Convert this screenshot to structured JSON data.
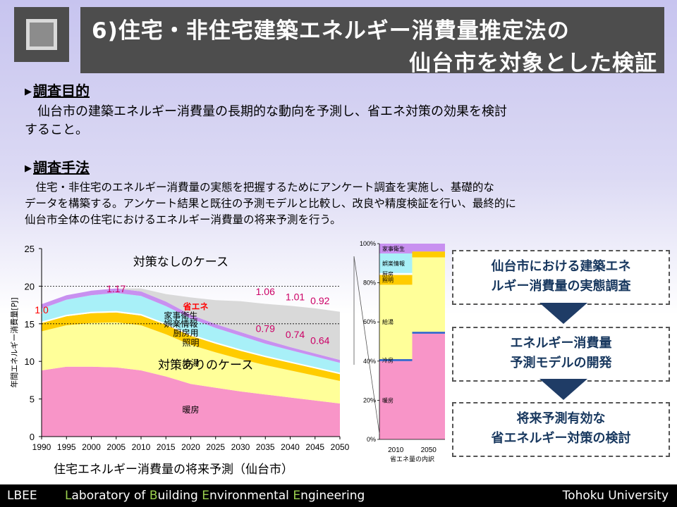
{
  "title": {
    "line1": "6)住宅・非住宅建築エネルギー消費量推定法の",
    "line2": "仙台市を対象とした検証"
  },
  "section1": {
    "heading": "調査目的",
    "lines": [
      "　仙台市の建築エネルギー消費量の長期的な動向を予測し、省エネ対策の効果を検討",
      "すること。"
    ]
  },
  "section2": {
    "heading": "調査手法",
    "lines": [
      "　住宅・非住宅のエネルギー消費量の実態を把握するためにアンケート調査を実施し、基礎的な",
      "データを構築する。アンケート結果と既往の予測モデルと比較し、改良や精度検証を行い、最終的に",
      "仙台市全体の住宅におけるエネルギー消費量の将来予測を行う。"
    ]
  },
  "flow": {
    "box1": [
      "仙台市における建築エネ",
      "ルギー消費量の実態調査"
    ],
    "box2": [
      "エネルギー消費量",
      "予測モデルの開発"
    ],
    "box3": [
      "将来予測有効な",
      "省エネルギー対策の検討"
    ]
  },
  "chart_caption": "住宅エネルギー消費量の将来予測（仙台市）",
  "chart_data": [
    {
      "type": "area",
      "title": "住宅エネルギー消費量の将来予測（仙台市）",
      "xlabel": "",
      "ylabel": "年間エネルギー消費量[PJ]",
      "x": [
        1990,
        1995,
        2000,
        2005,
        2010,
        2015,
        2020,
        2025,
        2030,
        2035,
        2040,
        2045,
        2050
      ],
      "ylim": [
        0,
        25
      ],
      "yticks": [
        "0",
        "5",
        "10",
        "15",
        "20",
        "25"
      ],
      "xticks": [
        "1990",
        "1995",
        "2000",
        "2005",
        "2010",
        "2015",
        "2020",
        "2025",
        "2030",
        "2035",
        "2040",
        "2045",
        "2050"
      ],
      "stacked": true,
      "series": [
        {
          "name": "暖房",
          "color": "#f895c8",
          "values": [
            8.8,
            9.3,
            9.3,
            9.2,
            8.8,
            8.0,
            7.0,
            6.5,
            6.0,
            5.6,
            5.2,
            4.8,
            4.4
          ]
        },
        {
          "name": "給湯",
          "color": "#ffff99",
          "values": [
            5.2,
            5.5,
            5.8,
            6.0,
            6.0,
            5.6,
            5.2,
            4.7,
            4.3,
            3.9,
            3.6,
            3.3,
            3.0
          ]
        },
        {
          "name": "照明",
          "color": "#ffcc00",
          "values": [
            1.1,
            1.2,
            1.3,
            1.3,
            1.3,
            1.25,
            1.2,
            1.15,
            1.1,
            1.05,
            1.0,
            0.95,
            0.9
          ]
        },
        {
          "name": "厨房用",
          "color": "#ffffff",
          "values": [
            0.2,
            0.2,
            0.2,
            0.2,
            0.2,
            0.2,
            0.2,
            0.2,
            0.2,
            0.2,
            0.2,
            0.2,
            0.2
          ]
        },
        {
          "name": "娯楽情報",
          "color": "#a8f0f8",
          "values": [
            1.7,
            2.0,
            2.2,
            2.4,
            2.4,
            2.3,
            2.1,
            1.9,
            1.8,
            1.6,
            1.5,
            1.4,
            1.3
          ]
        },
        {
          "name": "家事衛生",
          "color": "#c890f0",
          "values": [
            0.6,
            0.6,
            0.6,
            0.6,
            0.6,
            0.6,
            0.5,
            0.5,
            0.5,
            0.5,
            0.4,
            0.4,
            0.4
          ]
        },
        {
          "name": "省エネ",
          "color": "#d9d9d9",
          "values": [
            0.0,
            0.0,
            0.0,
            0.0,
            0.4,
            1.0,
            2.3,
            3.2,
            4.1,
            4.8,
            5.5,
            6.0,
            6.4
          ]
        }
      ],
      "index_labels": [
        {
          "text": "1.0",
          "x": 1990,
          "y": 16.4,
          "color": "#ff0000"
        },
        {
          "text": "1.17",
          "x": 2005,
          "y": 19.2,
          "color": "#cc0066"
        },
        {
          "text": "1.06",
          "x": 2035,
          "y": 18.8,
          "color": "#cc0066"
        },
        {
          "text": "1.01",
          "x": 2041,
          "y": 18.1,
          "color": "#cc0066"
        },
        {
          "text": "0.92",
          "x": 2046,
          "y": 17.6,
          "color": "#cc0066"
        },
        {
          "text": "0.79",
          "x": 2035,
          "y": 13.9,
          "color": "#cc0066"
        },
        {
          "text": "0.74",
          "x": 2041,
          "y": 13.1,
          "color": "#cc0066"
        },
        {
          "text": "0.64",
          "x": 2046,
          "y": 12.3,
          "color": "#cc0066"
        }
      ],
      "annotations": [
        {
          "text": "対策なしのケース",
          "x": 2018,
          "y": 22.7,
          "color": "#000000"
        },
        {
          "text": "対策ありのケース",
          "x": 2023,
          "y": 9.0,
          "color": "#000000"
        },
        {
          "text": "省エネ",
          "x": 2021,
          "y": 16.9,
          "color": "#ff0000"
        },
        {
          "text": "家事衛生",
          "x": 2018,
          "y": 15.7,
          "color": "#000000"
        },
        {
          "text": "娯楽情報",
          "x": 2018,
          "y": 14.6,
          "color": "#000000"
        },
        {
          "text": "厨房用",
          "x": 2019,
          "y": 13.4,
          "color": "#000000"
        },
        {
          "text": "照明",
          "x": 2020,
          "y": 12.1,
          "color": "#000000"
        },
        {
          "text": "給湯",
          "x": 2020,
          "y": 9.4,
          "color": "#000000"
        },
        {
          "text": "暖房",
          "x": 2020,
          "y": 3.2,
          "color": "#000000"
        }
      ],
      "reference_lines": [
        20,
        15
      ]
    },
    {
      "type": "bar",
      "stacked": true,
      "percent": true,
      "categories": [
        "2010",
        "2050"
      ],
      "xlabel": "省エネ量の内訳",
      "ylim": [
        0,
        100
      ],
      "yticks": [
        "0%",
        "20%",
        "40%",
        "60%",
        "80%",
        "100%"
      ],
      "series": [
        {
          "name": "暖房",
          "color": "#f895c8",
          "values": [
            40,
            54
          ]
        },
        {
          "name": "冷房",
          "color": "#3366cc",
          "values": [
            1,
            1
          ]
        },
        {
          "name": "給湯",
          "color": "#ffff99",
          "values": [
            38,
            38
          ]
        },
        {
          "name": "照明",
          "color": "#ffcc00",
          "values": [
            5,
            3
          ]
        },
        {
          "name": "厨房",
          "color": "#ffffff",
          "values": [
            1,
            0
          ]
        },
        {
          "name": "娯楽情報",
          "color": "#a8f0f8",
          "values": [
            10,
            0
          ]
        },
        {
          "name": "家事衛生",
          "color": "#c890f0",
          "values": [
            5,
            4
          ]
        }
      ]
    }
  ],
  "footer": {
    "lbee": "LBEE",
    "lab": [
      "L",
      "aboratory of ",
      "B",
      "uilding ",
      "E",
      "nvironmental ",
      "E",
      "ngineering"
    ],
    "university": "Tohoku University"
  },
  "colors": {
    "title_bg": "#4d4d4d",
    "flow_text": "#17375e",
    "flow_arrow": "#1f3c66",
    "footer_green": "#9bd14f"
  }
}
